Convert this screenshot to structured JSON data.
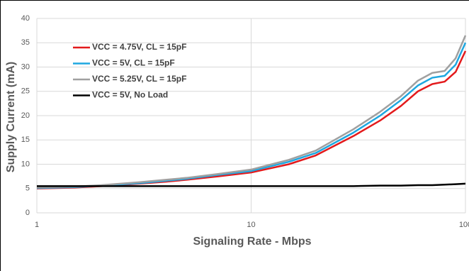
{
  "chart_data": {
    "type": "line",
    "x_label": "Signaling Rate - Mbps",
    "y_label": "Supply Current (mA)",
    "x": [
      1,
      1.5,
      2,
      3,
      4,
      5,
      7,
      10,
      15,
      20,
      30,
      40,
      50,
      60,
      70,
      80,
      90,
      100
    ],
    "xlim": [
      1,
      100
    ],
    "xticks": [
      1,
      10,
      100
    ],
    "xlog": true,
    "ylim": [
      0,
      40
    ],
    "yticks": [
      0,
      5,
      10,
      15,
      20,
      25,
      30,
      35,
      40
    ],
    "grid": true,
    "legend": "upper-left",
    "series": [
      {
        "name": "VCC = 4.75V, CL = 15pF",
        "color": "#e31a1c",
        "values": [
          5.0,
          5.2,
          5.5,
          6.0,
          6.4,
          6.8,
          7.5,
          8.3,
          10.0,
          11.8,
          15.8,
          19.0,
          22.0,
          25.0,
          26.5,
          27.0,
          29.0,
          33.3
        ]
      },
      {
        "name": "VCC = 5V, CL = 15pF",
        "color": "#1ea7e0",
        "values": [
          5.1,
          5.3,
          5.6,
          6.1,
          6.6,
          7.0,
          7.8,
          8.6,
          10.5,
          12.3,
          16.5,
          20.0,
          23.2,
          26.2,
          27.8,
          28.2,
          30.5,
          35.0
        ]
      },
      {
        "name": "VCC = 5.25V, CL = 15pF",
        "color": "#a0a0a0",
        "values": [
          5.2,
          5.4,
          5.7,
          6.3,
          6.8,
          7.2,
          8.0,
          8.9,
          10.9,
          12.8,
          17.2,
          20.8,
          24.0,
          27.2,
          28.8,
          29.2,
          31.8,
          36.5
        ]
      },
      {
        "name": "VCC = 5V, No Load",
        "color": "#000000",
        "values": [
          5.5,
          5.5,
          5.5,
          5.5,
          5.5,
          5.5,
          5.5,
          5.5,
          5.5,
          5.5,
          5.5,
          5.6,
          5.6,
          5.7,
          5.7,
          5.8,
          5.9,
          6.0
        ]
      }
    ]
  }
}
